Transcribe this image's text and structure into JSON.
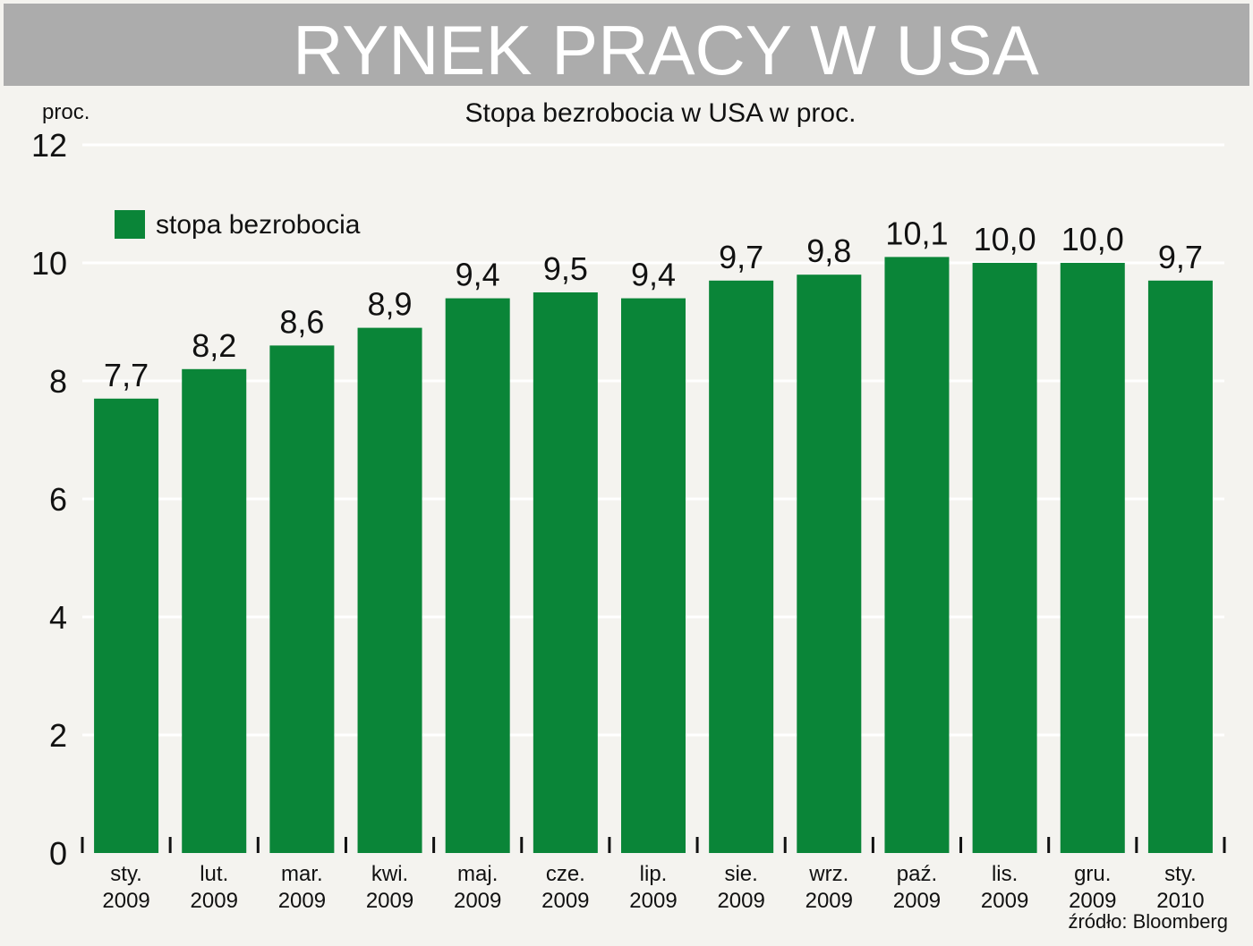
{
  "header": {
    "title": "RYNEK PRACY W USA",
    "subtitle": "Stopa bezrobocia w USA w proc.",
    "unit_label": "proc."
  },
  "footer": {
    "source": "źródło: Bloomberg"
  },
  "colors": {
    "bar": "#0a8538",
    "banner": "#acacac",
    "background": "#f4f3ef"
  },
  "chart_data": {
    "type": "bar",
    "title": "Stopa bezrobocia w USA w proc.",
    "ylabel": "proc.",
    "xlabel": "",
    "ylim": [
      0,
      12
    ],
    "yticks": [
      "0",
      "2",
      "4",
      "6",
      "8",
      "10",
      "12"
    ],
    "grid": true,
    "legend_position": "top-left",
    "categories": [
      [
        "sty.",
        "2009"
      ],
      [
        "lut.",
        "2009"
      ],
      [
        "mar.",
        "2009"
      ],
      [
        "kwi.",
        "2009"
      ],
      [
        "maj.",
        "2009"
      ],
      [
        "cze.",
        "2009"
      ],
      [
        "lip.",
        "2009"
      ],
      [
        "sie.",
        "2009"
      ],
      [
        "wrz.",
        "2009"
      ],
      [
        "paź.",
        "2009"
      ],
      [
        "lis.",
        "2009"
      ],
      [
        "gru.",
        "2009"
      ],
      [
        "sty.",
        "2010"
      ]
    ],
    "series": [
      {
        "name": "stopa bezrobocia",
        "values": [
          7.7,
          8.2,
          8.6,
          8.9,
          9.4,
          9.5,
          9.4,
          9.7,
          9.8,
          10.1,
          10.0,
          10.0,
          9.7
        ],
        "labels": [
          "7,7",
          "8,2",
          "8,6",
          "8,9",
          "9,4",
          "9,5",
          "9,4",
          "9,7",
          "9,8",
          "10,1",
          "10,0",
          "10,0",
          "9,7"
        ]
      }
    ]
  }
}
